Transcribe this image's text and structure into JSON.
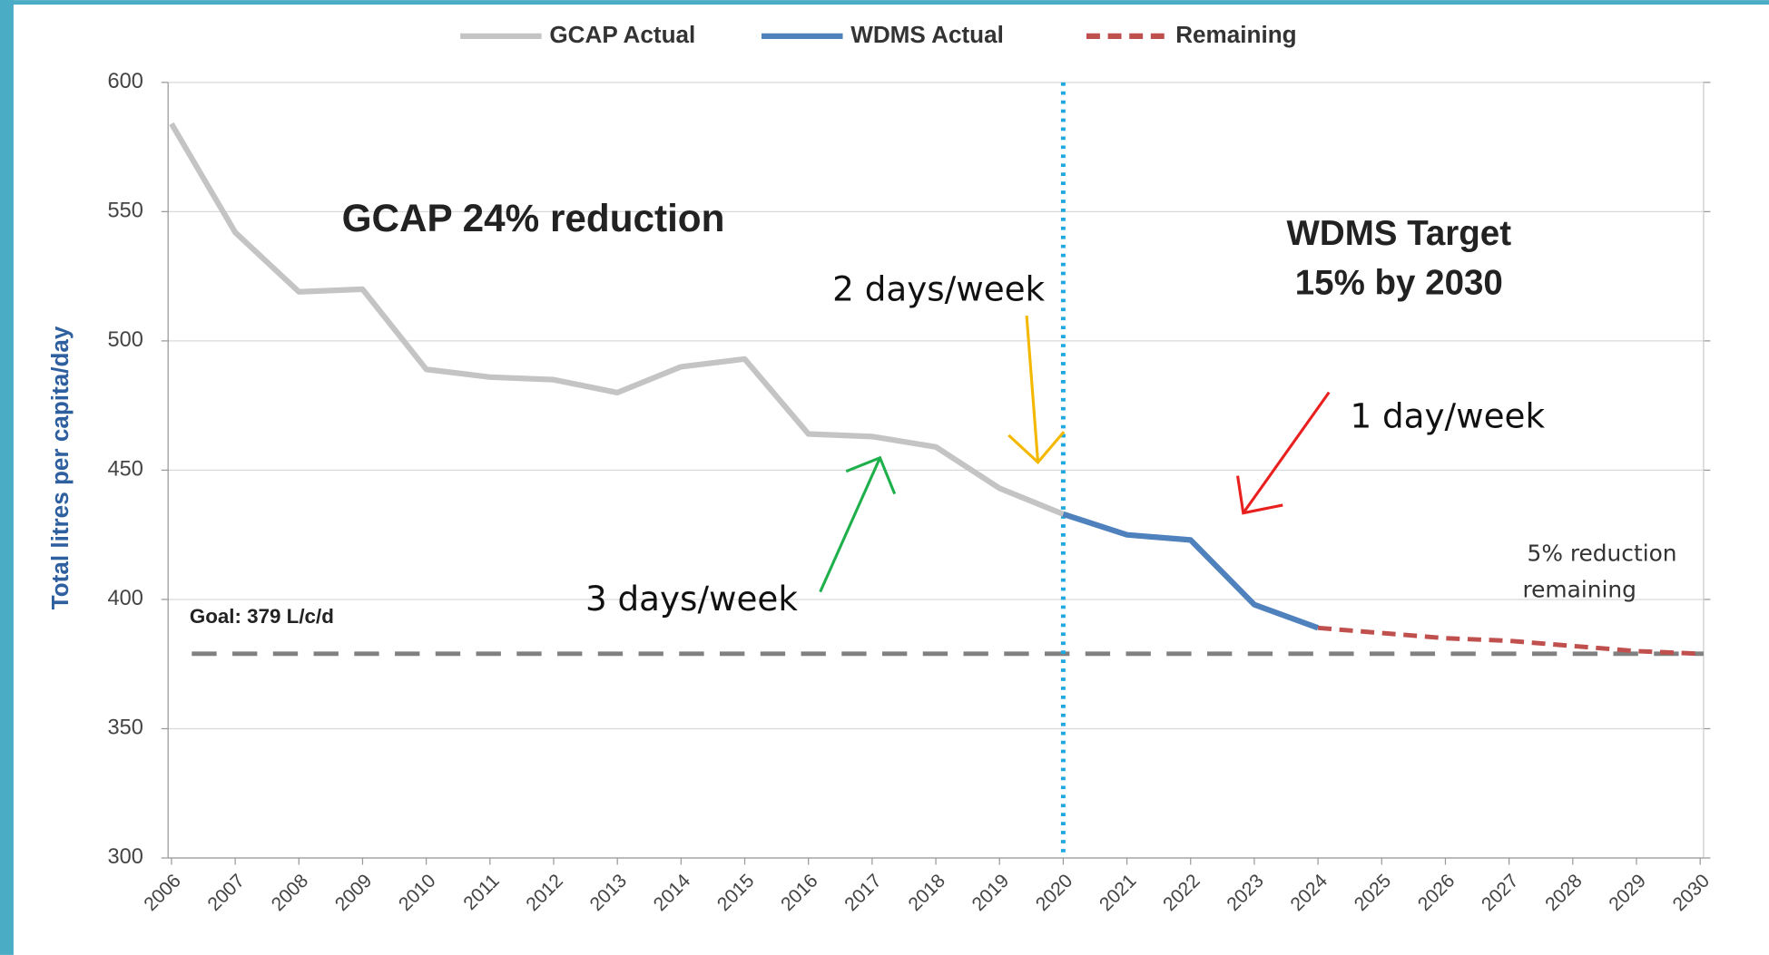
{
  "chart_data": {
    "type": "line",
    "categories": [
      "2006",
      "2007",
      "2008",
      "2009",
      "2010",
      "2011",
      "2012",
      "2013",
      "2014",
      "2015",
      "2016",
      "2017",
      "2018",
      "2019",
      "2020",
      "2021",
      "2022",
      "2023",
      "2024",
      "2025",
      "2026",
      "2027",
      "2028",
      "2029",
      "2030"
    ],
    "y_label": "Total litres per capita/day",
    "ylim": [
      300,
      600
    ],
    "yticks": [
      300,
      350,
      400,
      450,
      500,
      550,
      600
    ],
    "grid": true,
    "series": [
      {
        "name": "GCAP Actual",
        "color": "#c4c4c4",
        "dash": "solid",
        "values": [
          584,
          542,
          519,
          520,
          489,
          486,
          485,
          480,
          490,
          493,
          464,
          463,
          459,
          443,
          433,
          null,
          null,
          null,
          null,
          null,
          null,
          null,
          null,
          null,
          null
        ]
      },
      {
        "name": "WDMS Actual",
        "color": "#4f81bd",
        "dash": "solid",
        "values": [
          null,
          null,
          null,
          null,
          null,
          null,
          null,
          null,
          null,
          null,
          null,
          null,
          null,
          null,
          433,
          425,
          423,
          398,
          389,
          null,
          null,
          null,
          null,
          null,
          null
        ]
      },
      {
        "name": "Remaining",
        "color": "#c0504d",
        "dash": "dashed",
        "values": [
          null,
          null,
          null,
          null,
          null,
          null,
          null,
          null,
          null,
          null,
          null,
          null,
          null,
          null,
          null,
          null,
          null,
          null,
          389,
          387,
          385,
          384,
          382,
          380,
          379
        ]
      }
    ],
    "goal": {
      "label": "Goal: 379 L/c/d",
      "value": 379,
      "color": "#808080"
    },
    "vline_x": "2020",
    "annotations": [
      "GCAP 24% reduction",
      "WDMS Target",
      "15% by 2030",
      "2 days/week",
      "1 day/week",
      "3 days/week",
      "5% reduction",
      "remaining"
    ]
  }
}
